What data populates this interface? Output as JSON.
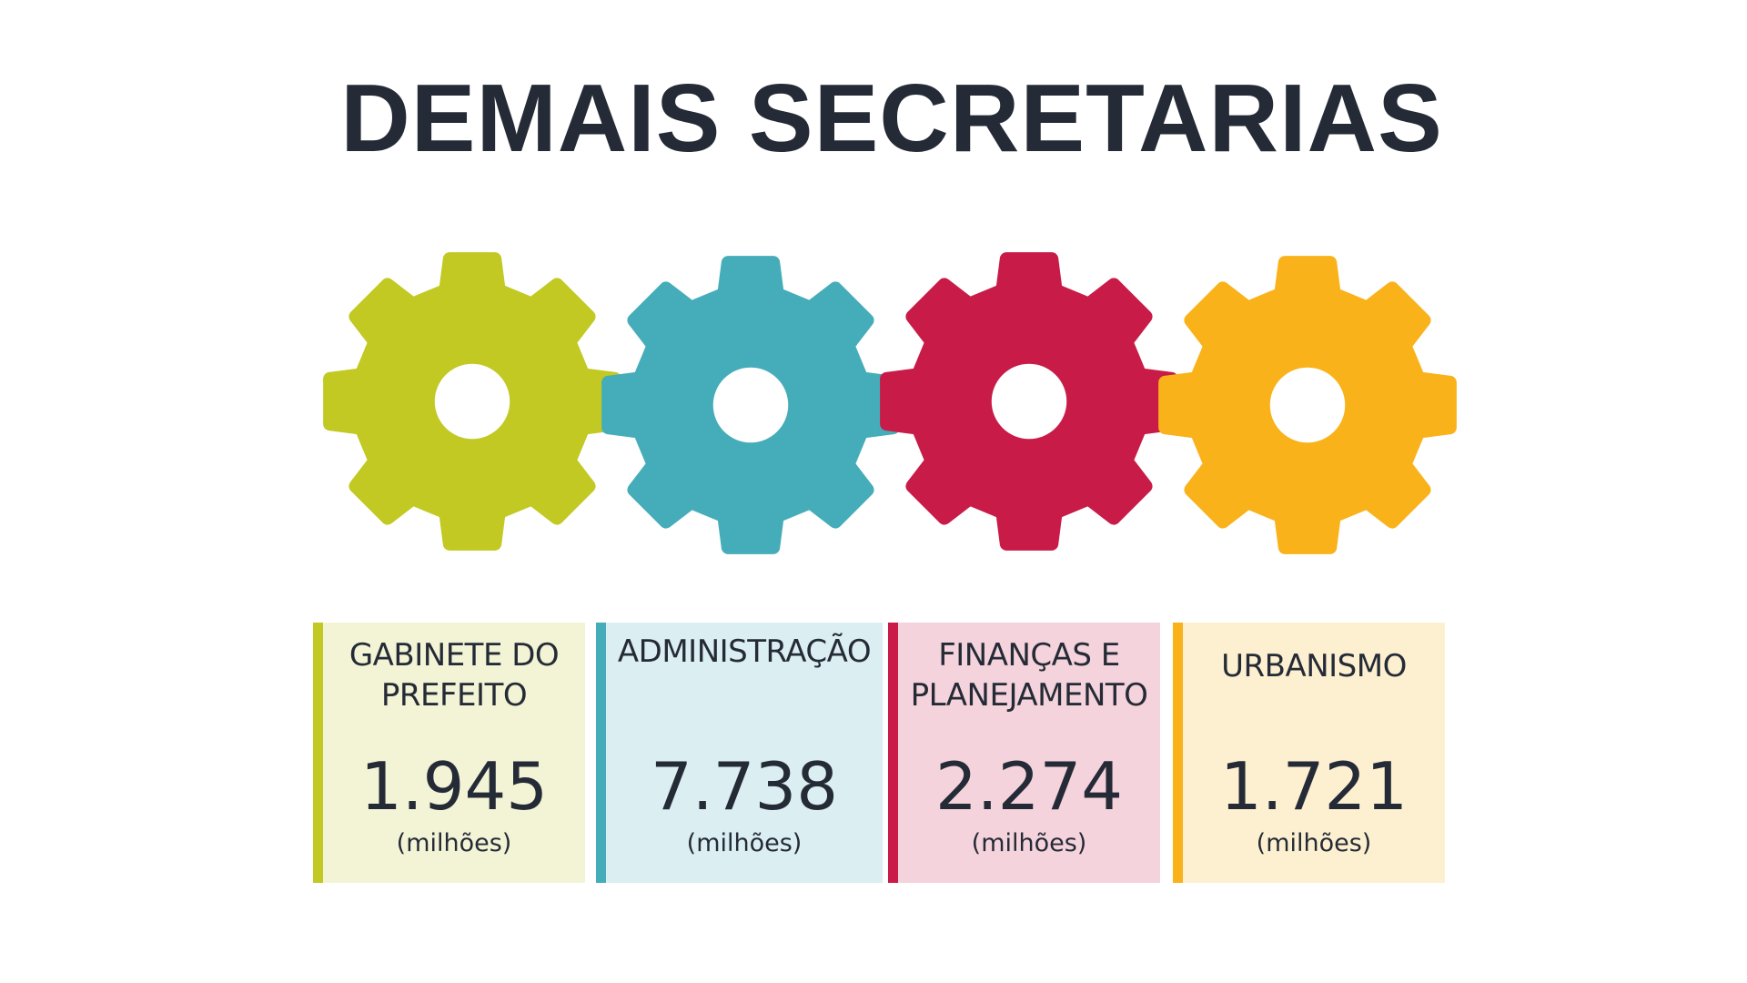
{
  "title": "DEMAIS SECRETARIAS",
  "cards": [
    {
      "label_lines": [
        "GABINETE DO",
        "PREFEITO"
      ],
      "value": "1.945",
      "unit": "(milhões)",
      "accent": "#c1c922",
      "background": "#f3f4d6",
      "icon": "gear-icon"
    },
    {
      "label_lines": [
        "ADMINISTRAÇÃO"
      ],
      "value": "7.738",
      "unit": "(milhões)",
      "accent": "#45adb9",
      "background": "#dbeef1",
      "icon": "gear-icon"
    },
    {
      "label_lines": [
        "FINANÇAS E",
        "PLANEJAMENTO"
      ],
      "value": "2.274",
      "unit": "(milhões)",
      "accent": "#c81b47",
      "background": "#f5d3dc",
      "icon": "gear-icon"
    },
    {
      "label_lines": [
        "URBANISMO"
      ],
      "value": "1.721",
      "unit": "(milhões)",
      "accent": "#f9b21a",
      "background": "#fdf0d1",
      "icon": "gear-icon"
    }
  ]
}
